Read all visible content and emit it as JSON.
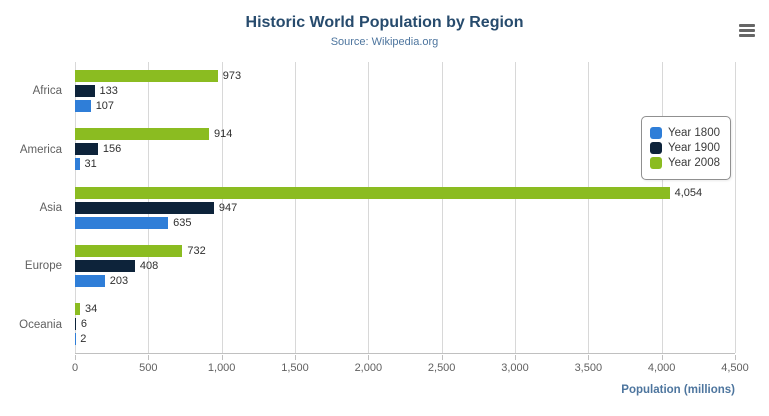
{
  "chart_data": {
    "type": "bar",
    "title": "Historic World Population by Region",
    "subtitle": "Source: Wikipedia.org",
    "categories": [
      "Africa",
      "America",
      "Asia",
      "Europe",
      "Oceania"
    ],
    "series": [
      {
        "name": "Year 1800",
        "color": "#2f7ed8",
        "values": [
          107,
          31,
          635,
          203,
          2
        ]
      },
      {
        "name": "Year 1900",
        "color": "#0d233a",
        "values": [
          133,
          156,
          947,
          408,
          6
        ]
      },
      {
        "name": "Year 2008",
        "color": "#8bbc21",
        "values": [
          973,
          914,
          4054,
          732,
          34
        ]
      }
    ],
    "bar_display_order_top_to_bottom": [
      "Year 2008",
      "Year 1900",
      "Year 1800"
    ],
    "xlabel": "Population (millions)",
    "ylabel": "",
    "xlim": [
      0,
      4500
    ],
    "xtick_labels": [
      "0",
      "500",
      "1,000",
      "1,500",
      "2,000",
      "2,500",
      "3,000",
      "3,500",
      "4,000",
      "4,500"
    ],
    "grid": true,
    "legend_position": "right-inside"
  },
  "ui": {
    "context_menu_icon": "hamburger-icon"
  },
  "colors": {
    "title": "#274b6d",
    "subtitle": "#4d759e",
    "axis_text": "#606060",
    "gridline": "#d8d8d8"
  }
}
